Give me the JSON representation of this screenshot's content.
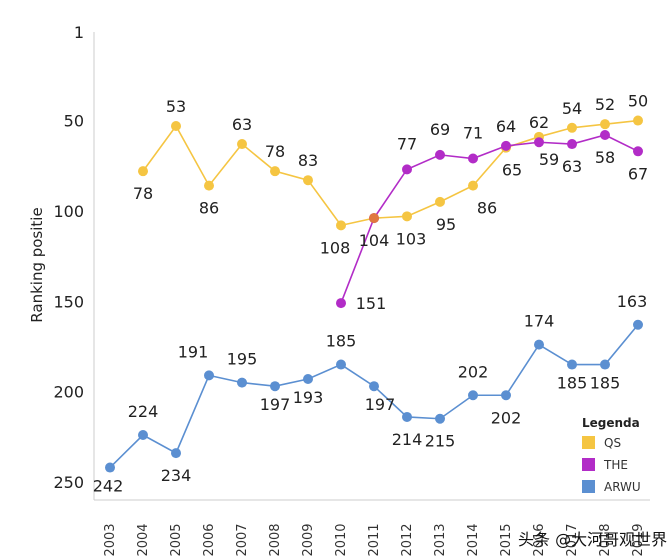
{
  "chart_data": {
    "type": "line",
    "categories": [
      "2003",
      "2004",
      "2005",
      "2006",
      "2007",
      "2008",
      "2009",
      "2010",
      "2011",
      "2012",
      "2013",
      "2014",
      "2015",
      "2016",
      "2017",
      "2018",
      "2019"
    ],
    "ylabel": "Ranking positie",
    "yticks": [
      1,
      50,
      100,
      150,
      200,
      250
    ],
    "ylim": [
      1,
      250
    ],
    "y_inverted": true,
    "grid": false,
    "legend_title": "Legenda",
    "legend_position": "bottom-right",
    "series": [
      {
        "name": "QS",
        "color": "#F5C542",
        "values": [
          null,
          78,
          53,
          86,
          63,
          78,
          83,
          108,
          104,
          103,
          95,
          86,
          65,
          59,
          54,
          52,
          50
        ],
        "labels": [
          null,
          "78",
          "53",
          "86",
          "63",
          "78",
          "83",
          "108",
          "104",
          "103",
          "95",
          "86",
          "65",
          "59",
          "54",
          "52",
          "50"
        ]
      },
      {
        "name": "THE",
        "color": "#B22CC7",
        "values": [
          null,
          null,
          null,
          null,
          null,
          null,
          null,
          151,
          104,
          77,
          69,
          71,
          64,
          62,
          63,
          58,
          67
        ],
        "labels": [
          null,
          null,
          null,
          null,
          null,
          null,
          null,
          "151",
          "",
          "77",
          "69",
          "71",
          "64",
          "62",
          "63",
          "58",
          "67"
        ]
      },
      {
        "name": "ARWU",
        "color": "#5B8FD1",
        "values": [
          242,
          224,
          234,
          191,
          195,
          197,
          193,
          185,
          197,
          214,
          215,
          202,
          202,
          174,
          185,
          185,
          163
        ],
        "labels": [
          "242",
          "224",
          "234",
          "191",
          "195",
          "197",
          "193",
          "185",
          "197",
          "214",
          "215",
          "202",
          "202",
          "174",
          "185",
          "185",
          "163"
        ]
      }
    ]
  },
  "watermark": "头条 @大河哥观世界",
  "colors": {
    "axis": "#cccccc",
    "crossing_point": "#E07840"
  }
}
